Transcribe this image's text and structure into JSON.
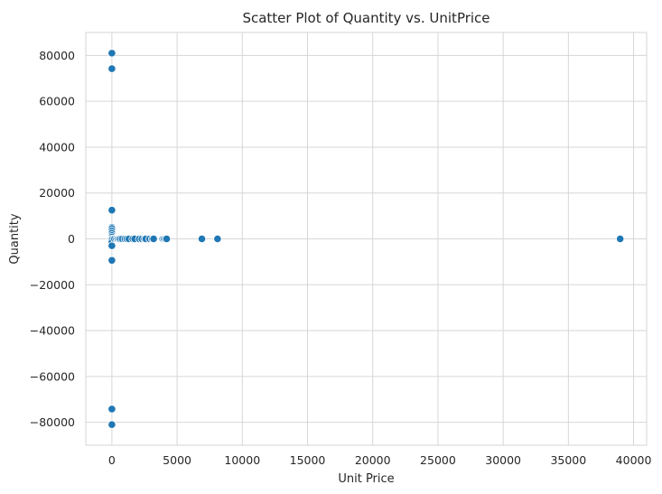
{
  "chart_data": {
    "type": "scatter",
    "title": "Scatter Plot of Quantity vs. UnitPrice",
    "xlabel": "Unit Price",
    "ylabel": "Quantity",
    "xlim": [
      -2000,
      41000
    ],
    "ylim": [
      -90000,
      90000
    ],
    "xticks": [
      0,
      5000,
      10000,
      15000,
      20000,
      25000,
      30000,
      35000,
      40000
    ],
    "xtick_labels": [
      "0",
      "5000",
      "10000",
      "15000",
      "20000",
      "25000",
      "30000",
      "35000",
      "40000"
    ],
    "yticks": [
      -80000,
      -60000,
      -40000,
      -20000,
      0,
      20000,
      40000,
      60000,
      80000
    ],
    "ytick_labels": [
      "−80000",
      "−60000",
      "−40000",
      "−20000",
      "0",
      "20000",
      "40000",
      "60000",
      "80000"
    ],
    "grid": true,
    "color": "#1f77b4",
    "x": [
      0,
      0,
      0,
      0,
      0,
      0,
      0,
      0,
      0,
      0,
      0,
      0,
      0,
      0,
      0,
      0,
      200,
      350,
      450,
      550,
      650,
      800,
      1000,
      1150,
      1300,
      1600,
      1750,
      2100,
      2300,
      2500,
      2600,
      2900,
      3100,
      3200,
      3900,
      4000,
      4100,
      4200,
      6900,
      8100,
      38970
    ],
    "y": [
      80995,
      74215,
      12540,
      5000,
      4500,
      3500,
      2500,
      1500,
      800,
      0,
      -500,
      -1500,
      -3000,
      -9360,
      -74215,
      -80995,
      0,
      0,
      0,
      0,
      0,
      0,
      0,
      0,
      0,
      0,
      0,
      0,
      0,
      0,
      0,
      0,
      0,
      0,
      0,
      0,
      0,
      0,
      0,
      0,
      0
    ]
  }
}
